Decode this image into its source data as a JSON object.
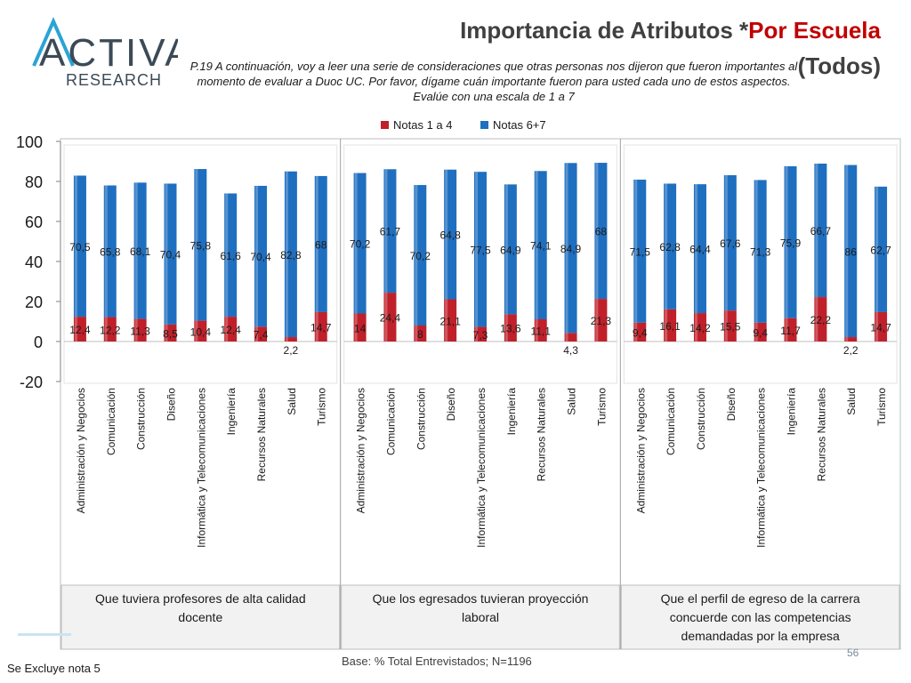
{
  "logo": {
    "wordmark": "ACTIVA",
    "sub": "RESEARCH",
    "colors": {
      "dark": "#3b4a56",
      "accent": "#2aa3d6"
    }
  },
  "header": {
    "title_main": "Importancia de Atributos *",
    "title_accent": "Por Escuela",
    "title_sub": "(Todos)",
    "question": "P.19 A continuación, voy a leer una serie de consideraciones que otras personas nos dijeron que fueron importantes al momento de evaluar a Duoc UC. Por favor, dígame cuán importante fueron para usted cada uno de estos aspectos. Evalúe con una escala de 1 a 7"
  },
  "footer": {
    "note": "Se Excluye nota 5",
    "base": "Base: % Total Entrevistados; N=1196",
    "page": "56"
  },
  "chart_data": {
    "type": "bar",
    "stacked": true,
    "ylim": [
      -20,
      100
    ],
    "yticks": [
      100,
      80,
      60,
      40,
      20,
      0,
      -20
    ],
    "grid": false,
    "legend_position": "top",
    "colors": {
      "Notas 1 a 4": "#c0202a",
      "Notas 6+7": "#1f6fc0"
    },
    "groups": [
      {
        "label": "Que tuviera profesores de alta calidad docente",
        "categories": [
          "Administración y Negocios",
          "Comunicación",
          "Construcción",
          "Diseño",
          "Informática y Telecomunicaciones",
          "Ingeniería",
          "Recursos Naturales",
          "Salud",
          "Turismo"
        ],
        "series": [
          {
            "name": "Notas 1 a 4",
            "values": [
              12.4,
              12.2,
              11.3,
              8.5,
              10.4,
              12.4,
              7.4,
              2.2,
              14.7
            ],
            "labels": [
              "12,4",
              "12,2",
              "11,3",
              "8,5",
              "10,4",
              "12,4",
              "7,4",
              "2,2",
              "14,7"
            ]
          },
          {
            "name": "Notas 6+7",
            "values": [
              70.5,
              65.8,
              68.1,
              70.4,
              75.8,
              61.6,
              70.4,
              82.8,
              68
            ],
            "labels": [
              "70,5",
              "65,8",
              "68,1",
              "70,4",
              "75,8",
              "61,6",
              "70,4",
              "82,8",
              "68"
            ]
          }
        ]
      },
      {
        "label": "Que los egresados tuvieran proyección laboral",
        "categories": [
          "Administración y Negocios",
          "Comunicación",
          "Construcción",
          "Diseño",
          "Informática y Telecomunicaciones",
          "Ingeniería",
          "Recursos Naturales",
          "Salud",
          "Turismo"
        ],
        "series": [
          {
            "name": "Notas 1 a 4",
            "values": [
              14,
              24.4,
              8,
              21.1,
              7.3,
              13.6,
              11.1,
              4.3,
              21.3
            ],
            "labels": [
              "14",
              "24,4",
              "8",
              "21,1",
              "7,3",
              "13,6",
              "11,1",
              "4,3",
              "21,3"
            ]
          },
          {
            "name": "Notas 6+7",
            "values": [
              70.2,
              61.7,
              70.2,
              64.8,
              77.5,
              64.9,
              74.1,
              84.9,
              68
            ],
            "labels": [
              "70,2",
              "61,7",
              "70,2",
              "64,8",
              "77,5",
              "64,9",
              "74,1",
              "84,9",
              "68"
            ]
          }
        ]
      },
      {
        "label": "Que el perfil de egreso de la carrera concuerde con las competencias demandadas por la empresa",
        "categories": [
          "Administración y Negocios",
          "Comunicación",
          "Construcción",
          "Diseño",
          "Informática y Telecomunicaciones",
          "Ingeniería",
          "Recursos Naturales",
          "Salud",
          "Turismo"
        ],
        "series": [
          {
            "name": "Notas 1 a 4",
            "values": [
              9.4,
              16.1,
              14.2,
              15.5,
              9.4,
              11.7,
              22.2,
              2.2,
              14.7
            ],
            "labels": [
              "9,4",
              "16,1",
              "14,2",
              "15,5",
              "9,4",
              "11,7",
              "22,2",
              "2,2",
              "14,7"
            ]
          },
          {
            "name": "Notas 6+7",
            "values": [
              71.5,
              62.8,
              64.4,
              67.6,
              71.3,
              75.9,
              66.7,
              86,
              62.7
            ],
            "labels": [
              "71,5",
              "62,8",
              "64,4",
              "67,6",
              "71,3",
              "75,9",
              "66,7",
              "86",
              "62,7"
            ]
          }
        ]
      }
    ]
  }
}
